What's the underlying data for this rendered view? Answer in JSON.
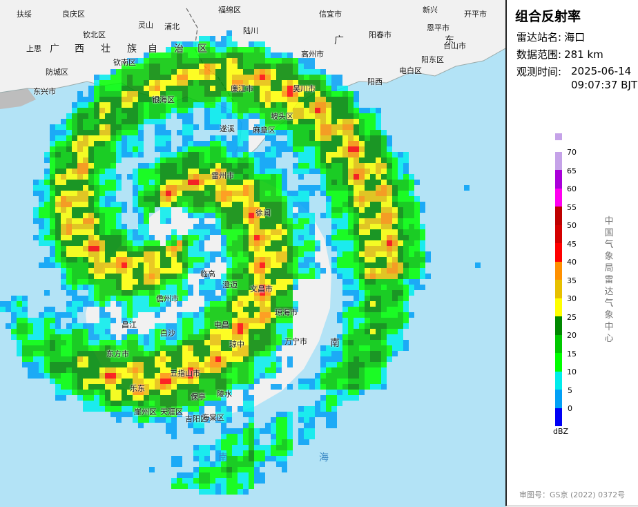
{
  "panel": {
    "title": "组合反射率",
    "station_label": "雷达站名:",
    "station_value": "海口",
    "range_label": "数据范围:",
    "range_value": "281 km",
    "time_label": "观测时间:",
    "time_date": "2025-06-14",
    "time_clock": "09:07:37 BJT",
    "agency": "中国气象局雷达气象中心",
    "unit": "dBZ",
    "review_no": "审图号：GS京 (2022) 0372号"
  },
  "colorbar": [
    {
      "label": "",
      "color": "#c5a2e8"
    },
    {
      "label": "70",
      "color": "#c5a2e8"
    },
    {
      "label": "65",
      "color": "#aa00d9"
    },
    {
      "label": "60",
      "color": "#ff00f0"
    },
    {
      "label": "55",
      "color": "#be0000"
    },
    {
      "label": "50",
      "color": "#d40000"
    },
    {
      "label": "45",
      "color": "#ff0000"
    },
    {
      "label": "40",
      "color": "#ff9000"
    },
    {
      "label": "35",
      "color": "#e7c000"
    },
    {
      "label": "30",
      "color": "#ffff00"
    },
    {
      "label": "25",
      "color": "#008800"
    },
    {
      "label": "20",
      "color": "#00c800"
    },
    {
      "label": "15",
      "color": "#00ff00"
    },
    {
      "label": "10",
      "color": "#00ecec"
    },
    {
      "label": "5",
      "color": "#01a0f6"
    },
    {
      "label": "0",
      "color": "#0000f6"
    }
  ],
  "map_labels": [
    {
      "text": "扶绥",
      "cls": ""
    },
    {
      "text": "良庆区",
      "cls": ""
    },
    {
      "text": "浦北",
      "cls": ""
    },
    {
      "text": "福绵区",
      "cls": ""
    },
    {
      "text": "信宜市",
      "cls": ""
    },
    {
      "text": "新兴",
      "cls": ""
    },
    {
      "text": "上思",
      "cls": ""
    },
    {
      "text": "钦北区",
      "cls": ""
    },
    {
      "text": "灵山",
      "cls": ""
    },
    {
      "text": "陆川",
      "cls": ""
    },
    {
      "text": "阳春市",
      "cls": ""
    },
    {
      "text": "恩平市",
      "cls": ""
    },
    {
      "text": "开平市",
      "cls": ""
    },
    {
      "text": "广",
      "cls": "big"
    },
    {
      "text": "西",
      "cls": "big"
    },
    {
      "text": "壮",
      "cls": "big"
    },
    {
      "text": "族",
      "cls": "big"
    },
    {
      "text": "自",
      "cls": "big"
    },
    {
      "text": "治",
      "cls": "big"
    },
    {
      "text": "区",
      "cls": "big"
    },
    {
      "text": "广",
      "cls": "big"
    },
    {
      "text": "东",
      "cls": "big"
    },
    {
      "text": "高州市",
      "cls": ""
    },
    {
      "text": "台山市",
      "cls": ""
    },
    {
      "text": "阳东区",
      "cls": ""
    },
    {
      "text": "防城区",
      "cls": ""
    },
    {
      "text": "钦南区",
      "cls": ""
    },
    {
      "text": "东兴市",
      "cls": ""
    },
    {
      "text": "银海区",
      "cls": ""
    },
    {
      "text": "廉江市",
      "cls": ""
    },
    {
      "text": "吴川市",
      "cls": ""
    },
    {
      "text": "阳西",
      "cls": ""
    },
    {
      "text": "电白区",
      "cls": ""
    },
    {
      "text": "坡头区",
      "cls": ""
    },
    {
      "text": "遂溪",
      "cls": ""
    },
    {
      "text": "麻章区",
      "cls": ""
    },
    {
      "text": "雷州市",
      "cls": ""
    },
    {
      "text": "徐闻",
      "cls": ""
    },
    {
      "text": "临高",
      "cls": ""
    },
    {
      "text": "澄迈",
      "cls": ""
    },
    {
      "text": "儋州市",
      "cls": ""
    },
    {
      "text": "文昌市",
      "cls": ""
    },
    {
      "text": "昌江",
      "cls": ""
    },
    {
      "text": "白沙",
      "cls": ""
    },
    {
      "text": "屯昌",
      "cls": ""
    },
    {
      "text": "琼中",
      "cls": ""
    },
    {
      "text": "琼海市",
      "cls": ""
    },
    {
      "text": "东方市",
      "cls": ""
    },
    {
      "text": "五指山市",
      "cls": ""
    },
    {
      "text": "万宁市",
      "cls": ""
    },
    {
      "text": "乐东",
      "cls": ""
    },
    {
      "text": "保亭",
      "cls": ""
    },
    {
      "text": "陵水",
      "cls": ""
    },
    {
      "text": "崖州区",
      "cls": ""
    },
    {
      "text": "天涯区",
      "cls": ""
    },
    {
      "text": "吉阳区",
      "cls": ""
    },
    {
      "text": "海棠区",
      "cls": ""
    },
    {
      "text": "南",
      "cls": "big"
    },
    {
      "text": "南",
      "cls": "sea"
    },
    {
      "text": "海",
      "cls": "sea"
    }
  ]
}
